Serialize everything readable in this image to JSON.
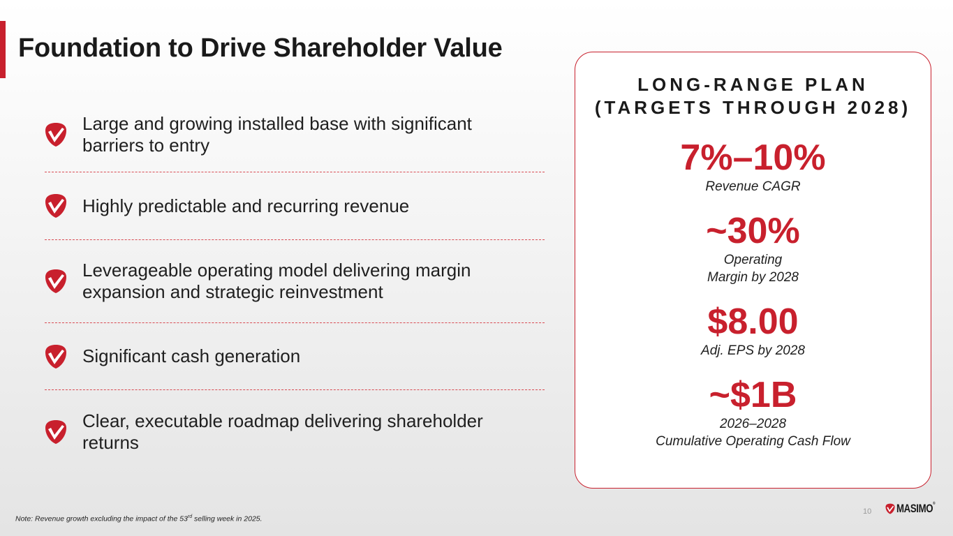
{
  "slide": {
    "title": "Foundation to Drive Shareholder Value"
  },
  "bullets": [
    {
      "text": "Large and growing installed base with significant barriers to entry"
    },
    {
      "text": "Highly predictable and recurring revenue"
    },
    {
      "text": "Leverageable operating model delivering margin expansion and strategic reinvestment"
    },
    {
      "text": "Significant cash generation"
    },
    {
      "text": "Clear, executable roadmap delivering shareholder returns"
    }
  ],
  "card": {
    "heading_line1": "LONG-RANGE PLAN",
    "heading_line2": "(TARGETS THROUGH 2028)",
    "metrics": [
      {
        "value": "7%–10%",
        "label_line1": "Revenue CAGR",
        "label_line2": ""
      },
      {
        "value": "~30%",
        "label_line1": "Operating",
        "label_line2": "Margin by 2028"
      },
      {
        "value": "$8.00",
        "label_line1": "Adj. EPS by 2028",
        "label_line2": ""
      },
      {
        "value": "~$1B",
        "label_line1": "2026–2028",
        "label_line2": "Cumulative Operating Cash Flow"
      }
    ]
  },
  "footer": {
    "note_prefix": "Note: Revenue growth excluding the impact of the 53",
    "note_sup": "rd",
    "note_suffix": " selling week in 2025.",
    "page_number": "10",
    "logo_text": "MASIMO",
    "logo_reg": "®"
  },
  "colors": {
    "accent": "#c8202d",
    "text": "#1a1a1a"
  },
  "icons": {
    "bullet": "check-shield-icon",
    "logo": "masimo-logo-icon"
  }
}
